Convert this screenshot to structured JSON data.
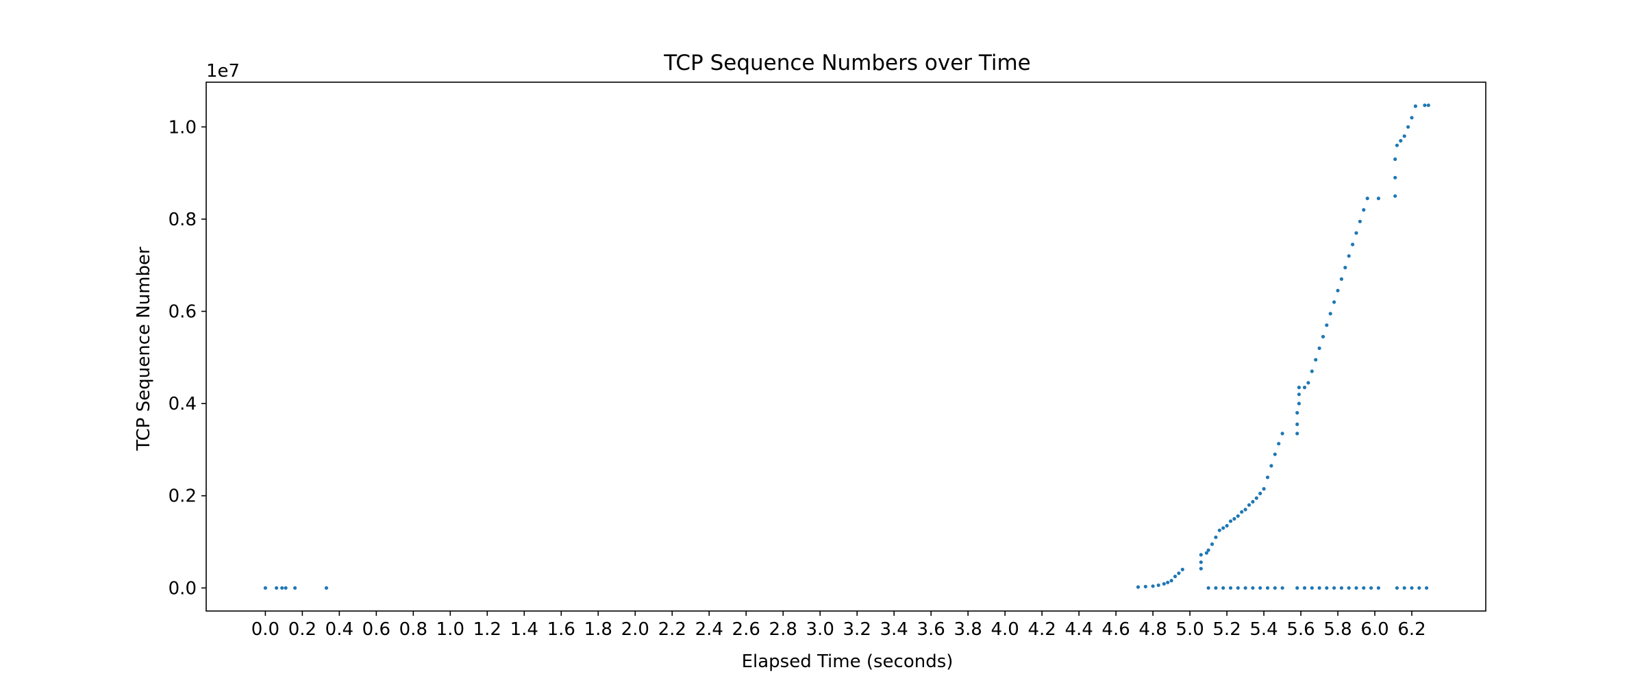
{
  "chart_data": {
    "type": "scatter",
    "title": "TCP Sequence Numbers over Time",
    "xlabel": "Elapsed Time (seconds)",
    "ylabel": "TCP Sequence Number",
    "y_offset_text": "1e7",
    "xlim": [
      -0.32,
      6.6
    ],
    "ylim": [
      -500000,
      10970000
    ],
    "x_ticks": [
      0.0,
      0.2,
      0.4,
      0.6,
      0.8,
      1.0,
      1.2,
      1.4,
      1.6,
      1.8,
      2.0,
      2.2,
      2.4,
      2.6,
      2.8,
      3.0,
      3.2,
      3.4,
      3.6,
      3.8,
      4.0,
      4.2,
      4.4,
      4.6,
      4.8,
      5.0,
      5.2,
      5.4,
      5.6,
      5.8,
      6.0,
      6.2
    ],
    "x_tick_labels": [
      "0.0",
      "0.2",
      "0.4",
      "0.6",
      "0.8",
      "1.0",
      "1.2",
      "1.4",
      "1.6",
      "1.8",
      "2.0",
      "2.2",
      "2.4",
      "2.6",
      "2.8",
      "3.0",
      "3.2",
      "3.4",
      "3.6",
      "3.8",
      "4.0",
      "4.2",
      "4.4",
      "4.6",
      "4.8",
      "5.0",
      "5.2",
      "5.4",
      "5.6",
      "5.8",
      "6.0",
      "6.2"
    ],
    "y_ticks": [
      0,
      2000000,
      4000000,
      6000000,
      8000000,
      10000000
    ],
    "y_tick_labels": [
      "0.0",
      "0.2",
      "0.4",
      "0.6",
      "0.8",
      "1.0"
    ],
    "grid": false,
    "legend": "none",
    "marker_color": "#1f77b4",
    "series": [
      {
        "values": [
          [
            0.0,
            0
          ],
          [
            0.06,
            0
          ],
          [
            0.09,
            0
          ],
          [
            0.11,
            0
          ],
          [
            0.16,
            0
          ],
          [
            0.33,
            0
          ],
          [
            4.72,
            20000
          ],
          [
            4.76,
            30000
          ],
          [
            4.8,
            40000
          ],
          [
            4.83,
            60000
          ],
          [
            4.86,
            90000
          ],
          [
            4.88,
            120000
          ],
          [
            4.9,
            160000
          ],
          [
            4.92,
            250000
          ],
          [
            4.94,
            320000
          ],
          [
            4.96,
            400000
          ],
          [
            5.06,
            420000
          ],
          [
            5.06,
            560000
          ],
          [
            5.06,
            720000
          ],
          [
            5.09,
            760000
          ],
          [
            5.1,
            820000
          ],
          [
            5.12,
            950000
          ],
          [
            5.14,
            1100000
          ],
          [
            5.16,
            1250000
          ],
          [
            5.18,
            1300000
          ],
          [
            5.2,
            1350000
          ],
          [
            5.22,
            1450000
          ],
          [
            5.24,
            1500000
          ],
          [
            5.26,
            1560000
          ],
          [
            5.28,
            1650000
          ],
          [
            5.3,
            1700000
          ],
          [
            5.32,
            1800000
          ],
          [
            5.34,
            1870000
          ],
          [
            5.36,
            1950000
          ],
          [
            5.38,
            2050000
          ],
          [
            5.4,
            2150000
          ],
          [
            5.42,
            2400000
          ],
          [
            5.44,
            2650000
          ],
          [
            5.46,
            2900000
          ],
          [
            5.48,
            3130000
          ],
          [
            5.5,
            3350000
          ],
          [
            5.58,
            3350000
          ],
          [
            5.58,
            3550000
          ],
          [
            5.58,
            3800000
          ],
          [
            5.59,
            4000000
          ],
          [
            5.59,
            4200000
          ],
          [
            5.59,
            4350000
          ],
          [
            5.62,
            4350000
          ],
          [
            5.64,
            4450000
          ],
          [
            5.66,
            4700000
          ],
          [
            5.68,
            4950000
          ],
          [
            5.7,
            5200000
          ],
          [
            5.72,
            5450000
          ],
          [
            5.74,
            5700000
          ],
          [
            5.76,
            5950000
          ],
          [
            5.78,
            6200000
          ],
          [
            5.8,
            6450000
          ],
          [
            5.82,
            6700000
          ],
          [
            5.84,
            6950000
          ],
          [
            5.86,
            7200000
          ],
          [
            5.88,
            7450000
          ],
          [
            5.9,
            7700000
          ],
          [
            5.92,
            7950000
          ],
          [
            5.94,
            8200000
          ],
          [
            5.96,
            8450000
          ],
          [
            6.02,
            8450000
          ],
          [
            6.11,
            8500000
          ],
          [
            6.11,
            8900000
          ],
          [
            6.11,
            9300000
          ],
          [
            6.12,
            9600000
          ],
          [
            6.14,
            9700000
          ],
          [
            6.16,
            9800000
          ],
          [
            6.18,
            10000000
          ],
          [
            6.2,
            10200000
          ],
          [
            6.22,
            10450000
          ],
          [
            6.27,
            10470000
          ],
          [
            6.29,
            10470000
          ],
          [
            5.1,
            0
          ],
          [
            5.14,
            0
          ],
          [
            5.18,
            0
          ],
          [
            5.22,
            0
          ],
          [
            5.26,
            0
          ],
          [
            5.3,
            0
          ],
          [
            5.34,
            0
          ],
          [
            5.38,
            0
          ],
          [
            5.42,
            0
          ],
          [
            5.46,
            0
          ],
          [
            5.5,
            0
          ],
          [
            5.58,
            0
          ],
          [
            5.62,
            0
          ],
          [
            5.66,
            0
          ],
          [
            5.7,
            0
          ],
          [
            5.74,
            0
          ],
          [
            5.78,
            0
          ],
          [
            5.82,
            0
          ],
          [
            5.86,
            0
          ],
          [
            5.9,
            0
          ],
          [
            5.94,
            0
          ],
          [
            5.98,
            0
          ],
          [
            6.02,
            0
          ],
          [
            6.12,
            0
          ],
          [
            6.16,
            0
          ],
          [
            6.2,
            0
          ],
          [
            6.24,
            0
          ],
          [
            6.28,
            0
          ]
        ]
      }
    ]
  }
}
